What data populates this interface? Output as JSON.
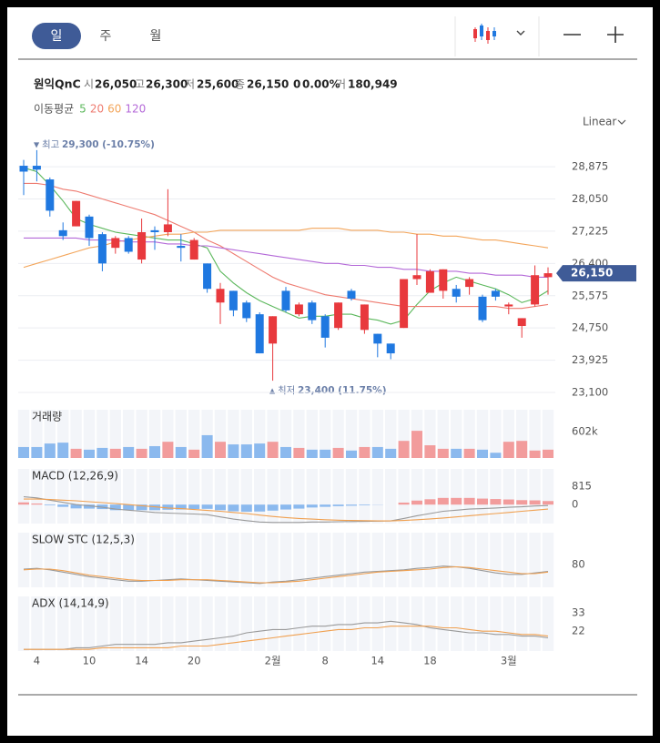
{
  "tabs": [
    "일",
    "주",
    "월"
  ],
  "stock": {
    "name": "원익QnC",
    "stats": [
      {
        "label": "시",
        "value": "26,050"
      },
      {
        "label": "고",
        "value": "26,300"
      },
      {
        "label": "저",
        "value": "25,600"
      },
      {
        "label": "종",
        "value": "26,150"
      }
    ],
    "change": "0",
    "change_rate": "0.00%",
    "volume": {
      "label": "거",
      "value": "180,949"
    }
  },
  "chart_data": [
    {
      "type": "candlestick",
      "scale": "Linear",
      "legend_title": "이동평균",
      "up_color": "#e8393d",
      "down_color": "#1f78e0",
      "grid": true,
      "ylim": [
        22890,
        29530
      ],
      "yticks": [
        {
          "value": 28875,
          "label": "28,875"
        },
        {
          "value": 28050,
          "label": "28,050"
        },
        {
          "value": 27225,
          "label": "27,225"
        },
        {
          "value": 26400,
          "label": "26,400"
        },
        {
          "value": 25575,
          "label": "25,575"
        },
        {
          "value": 24750,
          "label": "24,750"
        },
        {
          "value": 23925,
          "label": "23,925"
        },
        {
          "value": 23100,
          "label": "23,100"
        }
      ],
      "current": {
        "value": 26150,
        "label": "26,150"
      },
      "annotations": [
        {
          "marker": "▼",
          "label": "최고",
          "text": "29,300 (-10.75%)"
        },
        {
          "marker": "▲",
          "label": "최저",
          "text": "23,400 (11.75%)"
        }
      ],
      "open": [
        28900,
        28900,
        28550,
        27250,
        27350,
        27600,
        27150,
        26800,
        27050,
        26500,
        27250,
        27200,
        26850,
        26500,
        26400,
        25400,
        25700,
        25400,
        25100,
        24350,
        25700,
        25100,
        25400,
        25050,
        24750,
        25700,
        24700,
        24600,
        24350,
        24750,
        26000,
        25650,
        25700,
        25750,
        25800,
        25550,
        25700,
        25300,
        24800,
        25350,
        26050
      ],
      "high": [
        29050,
        29300,
        28600,
        27450,
        28000,
        27650,
        27200,
        27100,
        27100,
        27550,
        27350,
        28300,
        27150,
        27050,
        26400,
        25900,
        25700,
        25450,
        25150,
        25050,
        25800,
        25400,
        25450,
        25100,
        25400,
        25750,
        25350,
        24600,
        24350,
        26000,
        27150,
        26250,
        26250,
        25850,
        26050,
        25600,
        25750,
        25400,
        25000,
        26350,
        26300
      ],
      "low": [
        28150,
        28500,
        27600,
        27000,
        27350,
        26850,
        26200,
        26650,
        26650,
        26400,
        26750,
        27100,
        26450,
        26500,
        25650,
        24850,
        25050,
        24900,
        24100,
        23400,
        25150,
        25050,
        24850,
        24250,
        24700,
        25450,
        24600,
        24000,
        23950,
        24750,
        25850,
        25650,
        25500,
        25400,
        25600,
        24900,
        25450,
        25100,
        24500,
        25300,
        25600
      ],
      "close": [
        28750,
        28800,
        27750,
        27100,
        28000,
        27050,
        26400,
        27050,
        26700,
        27200,
        27200,
        27400,
        26800,
        27000,
        25750,
        25750,
        25200,
        25000,
        24100,
        25050,
        25200,
        25350,
        24950,
        24500,
        25400,
        25500,
        25350,
        24350,
        24100,
        26000,
        26100,
        26200,
        26250,
        25550,
        26000,
        24950,
        25550,
        25350,
        25000,
        26100,
        26150
      ],
      "series": [
        {
          "name": "5",
          "color": "#5cb85c",
          "values": [
            28850,
            28750,
            28400,
            28000,
            27550,
            27400,
            27300,
            27200,
            27150,
            27100,
            27050,
            27000,
            27000,
            26900,
            26800,
            26200,
            25900,
            25650,
            25450,
            25300,
            25150,
            25000,
            25050,
            25050,
            25100,
            25100,
            25000,
            24950,
            24850,
            24950,
            25350,
            25700,
            25900,
            26050,
            25950,
            25850,
            25750,
            25600,
            25400,
            25500,
            25700
          ]
        },
        {
          "name": "20",
          "color": "#ee7b70",
          "values": [
            28450,
            28450,
            28400,
            28300,
            28250,
            28150,
            28050,
            27950,
            27850,
            27750,
            27650,
            27500,
            27350,
            27200,
            27000,
            26850,
            26650,
            26450,
            26250,
            26050,
            25900,
            25800,
            25700,
            25600,
            25550,
            25500,
            25450,
            25400,
            25350,
            25300,
            25300,
            25300,
            25300,
            25300,
            25300,
            25300,
            25300,
            25250,
            25250,
            25300,
            25350
          ]
        },
        {
          "name": "60",
          "color": "#f3a55a",
          "values": [
            26300,
            26400,
            26500,
            26600,
            26700,
            26800,
            26850,
            26950,
            27000,
            27050,
            27100,
            27150,
            27150,
            27200,
            27200,
            27250,
            27250,
            27250,
            27250,
            27250,
            27250,
            27250,
            27300,
            27300,
            27300,
            27250,
            27250,
            27250,
            27200,
            27200,
            27150,
            27150,
            27100,
            27100,
            27050,
            27000,
            27000,
            26950,
            26900,
            26850,
            26800
          ]
        },
        {
          "name": "120",
          "color": "#b469d8",
          "values": [
            27050,
            27050,
            27050,
            27050,
            27050,
            27000,
            27000,
            27000,
            26950,
            26950,
            26950,
            26900,
            26900,
            26850,
            26850,
            26800,
            26750,
            26700,
            26650,
            26600,
            26550,
            26500,
            26450,
            26400,
            26400,
            26350,
            26350,
            26300,
            26300,
            26250,
            26250,
            26200,
            26200,
            26200,
            26150,
            26150,
            26100,
            26100,
            26100,
            26050,
            26050
          ]
        }
      ]
    },
    {
      "type": "bar",
      "title": "거래량",
      "up_color": "#f29c9c",
      "down_color": "#8bb9ee",
      "ylim": [
        0,
        1100000
      ],
      "yticks": [
        {
          "value": 602000,
          "label": "602k"
        }
      ],
      "values": [
        250000,
        250000,
        330000,
        350000,
        210000,
        190000,
        230000,
        210000,
        250000,
        210000,
        270000,
        370000,
        250000,
        190000,
        520000,
        370000,
        310000,
        310000,
        330000,
        370000,
        250000,
        230000,
        190000,
        190000,
        230000,
        170000,
        250000,
        250000,
        210000,
        390000,
        620000,
        290000,
        210000,
        210000,
        210000,
        190000,
        120000,
        370000,
        390000,
        170000,
        190000
      ]
    },
    {
      "type": "combo",
      "title": "MACD (12,26,9)",
      "positive_color": "#f29c9c",
      "negative_color": "#8bb9ee",
      "ylim": [
        -850,
        1600
      ],
      "yticks": [
        815,
        0
      ],
      "bars": [
        100,
        50,
        -30,
        -100,
        -170,
        -180,
        -200,
        -250,
        -250,
        -250,
        -250,
        -230,
        -220,
        -200,
        -190,
        -250,
        -300,
        -320,
        -310,
        -270,
        -220,
        -180,
        -130,
        -100,
        -70,
        -50,
        -30,
        -10,
        0,
        90,
        180,
        240,
        300,
        300,
        300,
        270,
        250,
        230,
        200,
        190,
        160
      ],
      "series": [
        {
          "color": "#999999",
          "values": [
            350,
            300,
            200,
            100,
            0,
            -50,
            -120,
            -200,
            -250,
            -300,
            -350,
            -380,
            -400,
            -420,
            -450,
            -550,
            -650,
            -720,
            -780,
            -800,
            -800,
            -800,
            -780,
            -780,
            -770,
            -760,
            -750,
            -740,
            -730,
            -620,
            -500,
            -400,
            -300,
            -250,
            -200,
            -180,
            -150,
            -120,
            -100,
            -60,
            -40
          ]
        },
        {
          "color": "#f0a050",
          "values": [
            250,
            250,
            230,
            200,
            170,
            130,
            90,
            50,
            0,
            -50,
            -100,
            -150,
            -180,
            -220,
            -260,
            -300,
            -350,
            -400,
            -470,
            -530,
            -580,
            -620,
            -650,
            -680,
            -700,
            -710,
            -720,
            -730,
            -730,
            -710,
            -680,
            -640,
            -600,
            -550,
            -500,
            -450,
            -400,
            -350,
            -300,
            -250,
            -200
          ]
        }
      ]
    },
    {
      "type": "line",
      "title": "SLOW STC (12,5,3)",
      "ylim": [
        50,
        122
      ],
      "yticks": [
        80
      ],
      "series": [
        {
          "color": "#999999",
          "values": [
            74,
            75,
            73,
            70,
            67,
            64,
            62,
            60,
            58,
            58,
            59,
            60,
            61,
            60,
            59,
            58,
            57,
            56,
            55,
            57,
            58,
            60,
            62,
            64,
            66,
            68,
            70,
            71,
            72,
            73,
            75,
            76,
            78,
            77,
            75,
            72,
            69,
            67,
            67,
            69,
            71
          ]
        },
        {
          "color": "#f0a050",
          "values": [
            73,
            74,
            74,
            72,
            69,
            66,
            64,
            62,
            60,
            59,
            59,
            59,
            60,
            60,
            60,
            59,
            58,
            57,
            56,
            56,
            57,
            58,
            60,
            62,
            64,
            66,
            68,
            70,
            71,
            72,
            73,
            74,
            76,
            77,
            76,
            74,
            72,
            70,
            68,
            68,
            70
          ]
        }
      ]
    },
    {
      "type": "line",
      "title": "ADX (14,14,9)",
      "ylim": [
        10,
        43
      ],
      "yticks": [
        33,
        22
      ],
      "categories": [
        null,
        "4",
        null,
        null,
        null,
        "10",
        null,
        null,
        null,
        "14",
        null,
        null,
        null,
        "20",
        null,
        null,
        null,
        null,
        null,
        "2월",
        null,
        null,
        null,
        "8",
        null,
        null,
        null,
        "14",
        null,
        null,
        null,
        "18",
        null,
        null,
        null,
        null,
        null,
        "3월",
        null,
        null,
        null
      ],
      "series": [
        {
          "color": "#999999",
          "values": [
            11,
            11,
            11,
            11,
            12,
            12,
            13,
            14,
            14,
            14,
            14,
            15,
            15,
            16,
            17,
            18,
            19,
            21,
            22,
            23,
            23,
            24,
            25,
            25,
            26,
            26,
            27,
            27,
            28,
            27,
            26,
            24,
            23,
            22,
            21,
            21,
            20,
            20,
            19,
            19,
            18
          ]
        },
        {
          "color": "#f0a050",
          "values": [
            11,
            11,
            11,
            11,
            11,
            11,
            12,
            12,
            12,
            12,
            12,
            12,
            13,
            13,
            13,
            14,
            15,
            16,
            17,
            18,
            19,
            20,
            21,
            22,
            23,
            23,
            24,
            24,
            25,
            25,
            25,
            25,
            24,
            24,
            23,
            22,
            22,
            21,
            20,
            20,
            19
          ]
        }
      ]
    }
  ]
}
